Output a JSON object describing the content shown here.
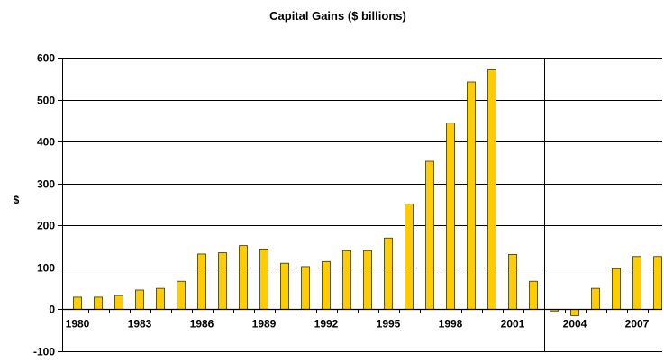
{
  "chart_data": {
    "type": "bar",
    "title": "Capital Gains ($ billions)",
    "xlabel": "",
    "ylabel": "$",
    "ylim": [
      -100,
      600
    ],
    "y_ticks": [
      -100,
      0,
      100,
      200,
      300,
      400,
      500,
      600
    ],
    "y_tick_labels": [
      "-100",
      "0",
      "100",
      "200",
      "300",
      "400",
      "500",
      "600"
    ],
    "grid": true,
    "legend": "none",
    "categories": [
      "1980",
      "1981",
      "1982",
      "1983",
      "1984",
      "1985",
      "1986",
      "1987",
      "1988",
      "1989",
      "1990",
      "1991",
      "1992",
      "1993",
      "1994",
      "1995",
      "1996",
      "1997",
      "1998",
      "1999",
      "2000",
      "2001",
      "2002",
      "2003",
      "2004",
      "2005",
      "2006",
      "2007",
      "2008"
    ],
    "x_tick_labels": {
      "1980": "1980",
      "1983": "1983",
      "1986": "1986",
      "1989": "1989",
      "1992": "1992",
      "1995": "1995",
      "1998": "1998",
      "2001": "2001",
      "2004": "2004",
      "2007": "2007"
    },
    "series": [
      {
        "values": [
          29,
          29,
          33,
          46,
          50,
          67,
          132,
          135,
          152,
          144,
          110,
          102,
          114,
          140,
          140,
          170,
          251,
          353,
          444,
          542,
          571,
          131,
          67,
          -4,
          -15,
          50,
          97,
          126,
          126
        ]
      }
    ],
    "divider_after_category": "2002",
    "colors": {
      "bar_fill": "#FFCC00",
      "bar_stroke": "#333300",
      "grid": "#000000"
    }
  }
}
